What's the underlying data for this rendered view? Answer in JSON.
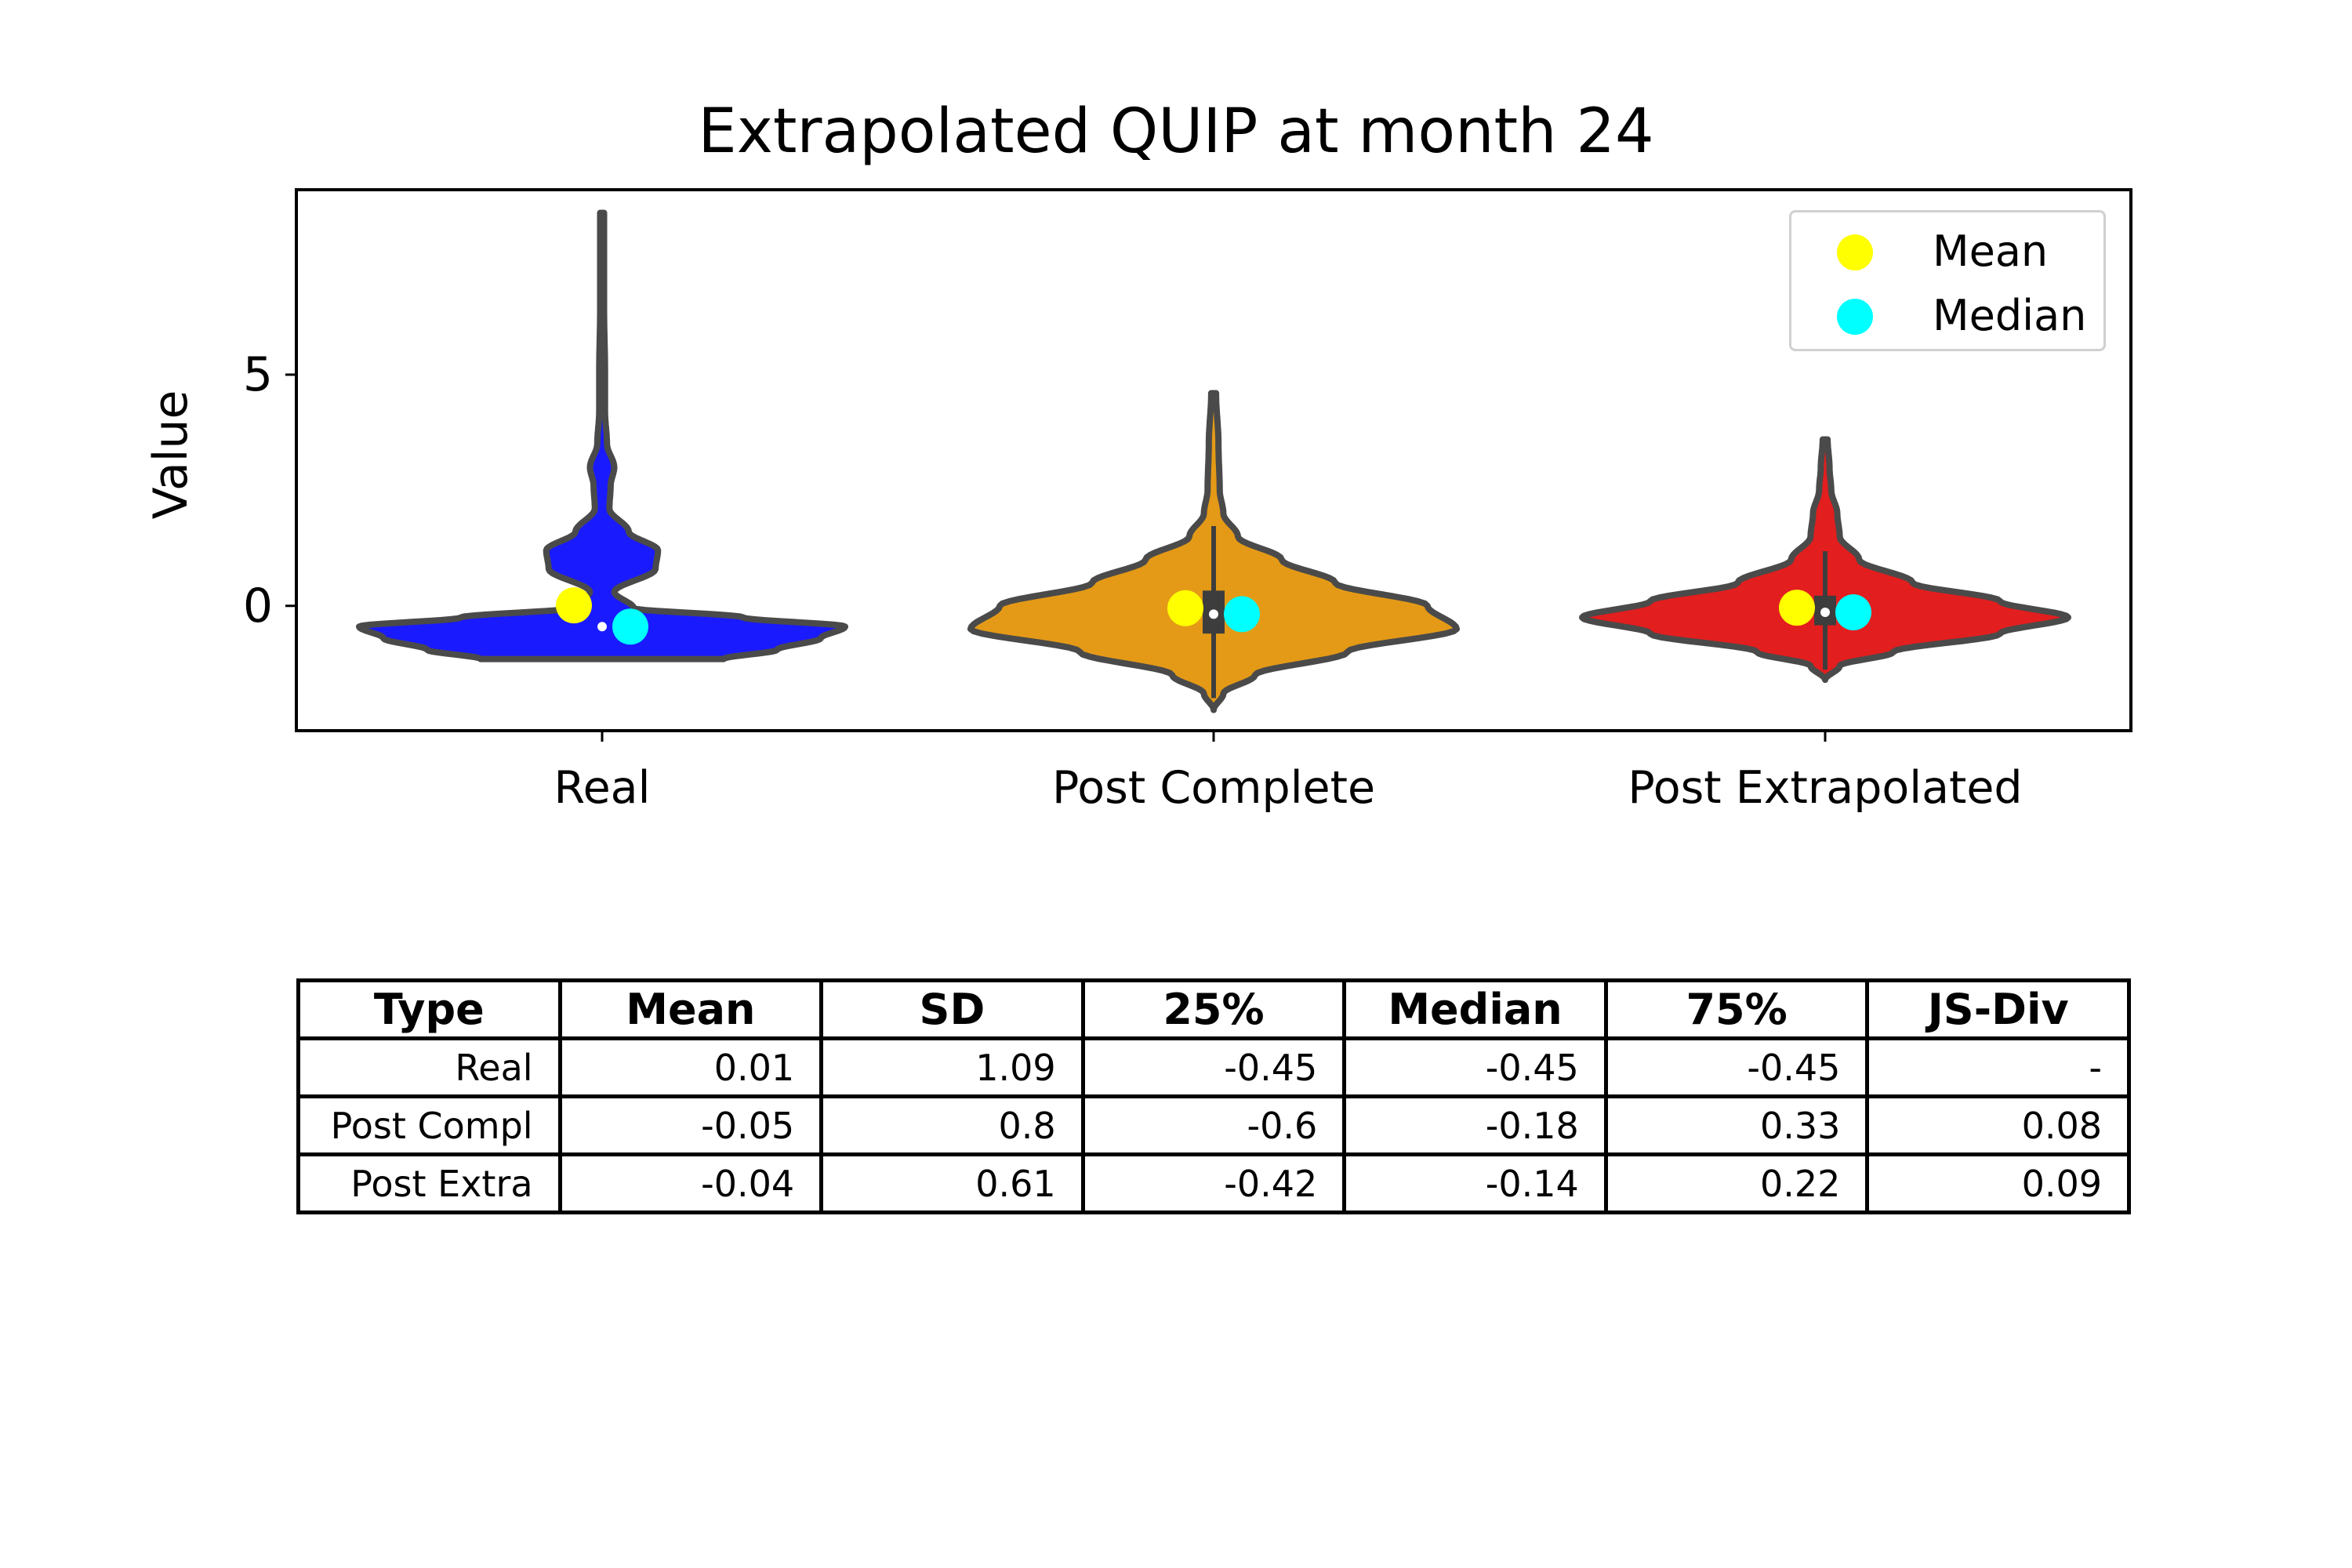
{
  "chart_data": {
    "type": "violin",
    "title": "Extrapolated QUIP at month 24",
    "xlabel": "",
    "ylabel": "Value",
    "ylim": [
      -2.7,
      9.0
    ],
    "yticks": [
      0,
      5
    ],
    "ytick_labels": [
      "0",
      "5"
    ],
    "categories": [
      "Real",
      "Post Complete",
      "Post Extrapolated"
    ],
    "colors": [
      "#1a1aff",
      "#e49a17",
      "#e21e1e"
    ],
    "mean_color": "#ffff00",
    "median_color": "#00ffff",
    "legend": {
      "position": "top-right",
      "entries": [
        {
          "label": "Mean",
          "color": "#ffff00"
        },
        {
          "label": "Median",
          "color": "#00ffff"
        }
      ]
    },
    "series": [
      {
        "category": "Real",
        "mean": 0.01,
        "median": -0.45,
        "q1": -0.45,
        "q3": -0.45,
        "profile": [
          [
            -1.15,
            0.5
          ],
          [
            -0.95,
            0.72
          ],
          [
            -0.7,
            0.9
          ],
          [
            -0.45,
            1.0
          ],
          [
            -0.25,
            0.58
          ],
          [
            -0.05,
            0.13
          ],
          [
            0.3,
            0.05
          ],
          [
            0.8,
            0.22
          ],
          [
            1.2,
            0.23
          ],
          [
            1.6,
            0.11
          ],
          [
            2.1,
            0.03
          ],
          [
            2.6,
            0.035
          ],
          [
            3.0,
            0.05
          ],
          [
            3.5,
            0.02
          ],
          [
            4.2,
            0.012
          ],
          [
            5.0,
            0.012
          ],
          [
            6.5,
            0.008
          ],
          [
            8.5,
            0.008
          ]
        ]
      },
      {
        "category": "Post Complete",
        "mean": -0.05,
        "median": -0.18,
        "q1": -0.6,
        "q3": 0.33,
        "profile": [
          [
            -2.25,
            0.0
          ],
          [
            -1.9,
            0.04
          ],
          [
            -1.5,
            0.17
          ],
          [
            -1.0,
            0.55
          ],
          [
            -0.5,
            1.0
          ],
          [
            0.0,
            0.88
          ],
          [
            0.5,
            0.5
          ],
          [
            1.0,
            0.28
          ],
          [
            1.5,
            0.1
          ],
          [
            2.0,
            0.04
          ],
          [
            2.5,
            0.025
          ],
          [
            3.5,
            0.02
          ],
          [
            4.6,
            0.01
          ]
        ]
      },
      {
        "category": "Post Extrapolated",
        "mean": -0.04,
        "median": -0.14,
        "q1": -0.42,
        "q3": 0.22,
        "profile": [
          [
            -1.6,
            0.0
          ],
          [
            -1.3,
            0.06
          ],
          [
            -1.0,
            0.28
          ],
          [
            -0.6,
            0.72
          ],
          [
            -0.25,
            1.0
          ],
          [
            0.1,
            0.72
          ],
          [
            0.5,
            0.36
          ],
          [
            1.0,
            0.14
          ],
          [
            1.5,
            0.06
          ],
          [
            2.0,
            0.05
          ],
          [
            2.5,
            0.025
          ],
          [
            3.0,
            0.018
          ],
          [
            3.6,
            0.01
          ]
        ]
      }
    ]
  },
  "table": {
    "headers": [
      "Type",
      "Mean",
      "SD",
      "25%",
      "Median",
      "75%",
      "JS-Div"
    ],
    "rows": [
      [
        "Real",
        "0.01",
        "1.09",
        "-0.45",
        "-0.45",
        "-0.45",
        "-"
      ],
      [
        "Post Compl",
        "-0.05",
        "0.8",
        "-0.6",
        "-0.18",
        "0.33",
        "0.08"
      ],
      [
        "Post Extra",
        "-0.04",
        "0.61",
        "-0.42",
        "-0.14",
        "0.22",
        "0.09"
      ]
    ]
  }
}
